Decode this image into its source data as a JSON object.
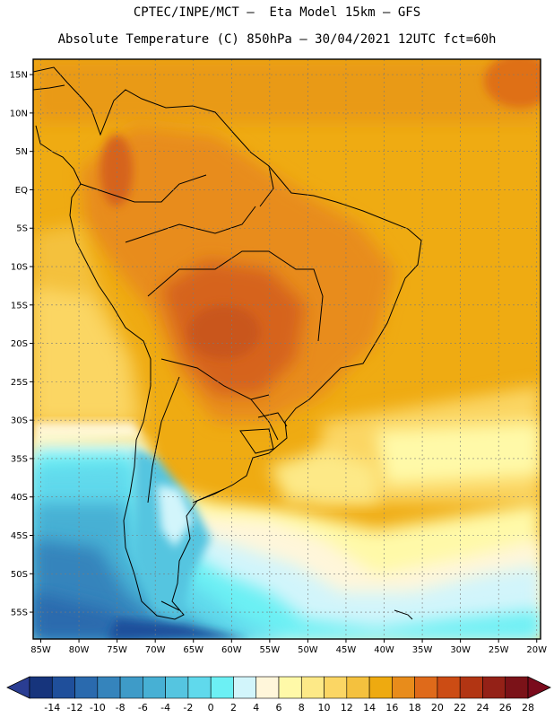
{
  "title": {
    "line1": "CPTEC/INPE/MCT –  Eta Model 15km – GFS",
    "line2": "Absolute Temperature (C) 850hPa – 30/04/2021 12UTC fct=60h"
  },
  "axes": {
    "lat_labels": [
      "15N",
      "10N",
      "5N",
      "EQ",
      "5S",
      "10S",
      "15S",
      "20S",
      "25S",
      "30S",
      "35S",
      "40S",
      "45S",
      "50S",
      "55S"
    ],
    "lat_values": [
      15,
      10,
      5,
      0,
      -5,
      -10,
      -15,
      -20,
      -25,
      -30,
      -35,
      -40,
      -45,
      -50,
      -55
    ],
    "lon_labels": [
      "85W",
      "80W",
      "75W",
      "70W",
      "65W",
      "60W",
      "55W",
      "50W",
      "45W",
      "40W",
      "35W",
      "30W",
      "25W",
      "20W"
    ],
    "lon_values": [
      -85,
      -80,
      -75,
      -70,
      -65,
      -60,
      -55,
      -50,
      -45,
      -40,
      -35,
      -30,
      -25,
      -20
    ],
    "lat_range": [
      -58.5,
      17
    ],
    "lon_range": [
      -86,
      -19.5
    ],
    "grid": true
  },
  "colorbar": {
    "labels": [
      "-14",
      "-12",
      "-10",
      "-8",
      "-6",
      "-4",
      "-2",
      "0",
      "2",
      "4",
      "6",
      "8",
      "10",
      "12",
      "14",
      "16",
      "18",
      "20",
      "22",
      "24",
      "26",
      "28"
    ],
    "colors": [
      "#16347c",
      "#1f4f9b",
      "#2a6aae",
      "#3584bc",
      "#3e9bc8",
      "#47b0d4",
      "#55c5e0",
      "#60d9ec",
      "#6cf0f4",
      "#d2f5fb",
      "#fff6da",
      "#fff9a8",
      "#fde987",
      "#fbd664",
      "#f4c13e",
      "#eeaa10",
      "#e88c1b",
      "#df6a1a",
      "#cc4c14",
      "#b23513",
      "#942117",
      "#7b1218"
    ],
    "left_end_color": "#2a3d92",
    "right_end_color": "#7a0a1c"
  }
}
